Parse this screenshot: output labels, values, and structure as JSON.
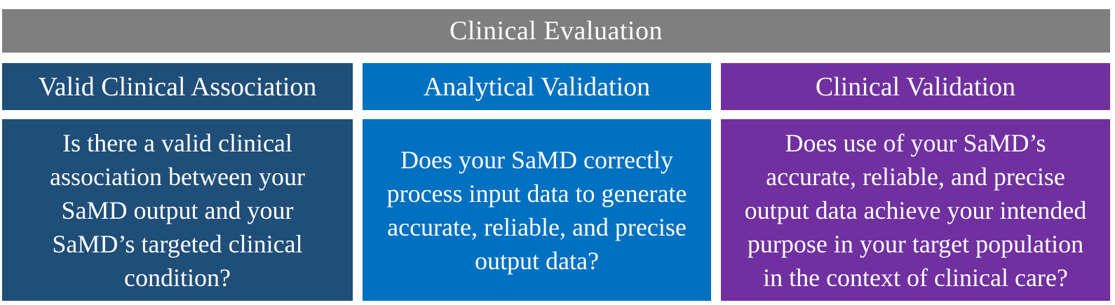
{
  "title": "Clinical Evaluation",
  "colors": {
    "title_bar": "#7F7F7F",
    "col1": "#1F4E79",
    "col2": "#0070C0",
    "col3": "#7030A0",
    "text": "#FFFFFF",
    "background": "#FFFFFF"
  },
  "columns": [
    {
      "header": "Valid Clinical Association",
      "body": "Is there a valid clinical\nassociation between your\nSaMD output and your\nSaMD’s targeted clinical\ncondition?"
    },
    {
      "header": "Analytical Validation",
      "body": "Does your SaMD correctly\nprocess input data to generate\naccurate, reliable, and precise\noutput data?"
    },
    {
      "header": "Clinical Validation",
      "body": "Does use of your SaMD’s\naccurate, reliable, and precise\noutput data achieve your intended\npurpose in your target population\nin the context of clinical care?"
    }
  ]
}
